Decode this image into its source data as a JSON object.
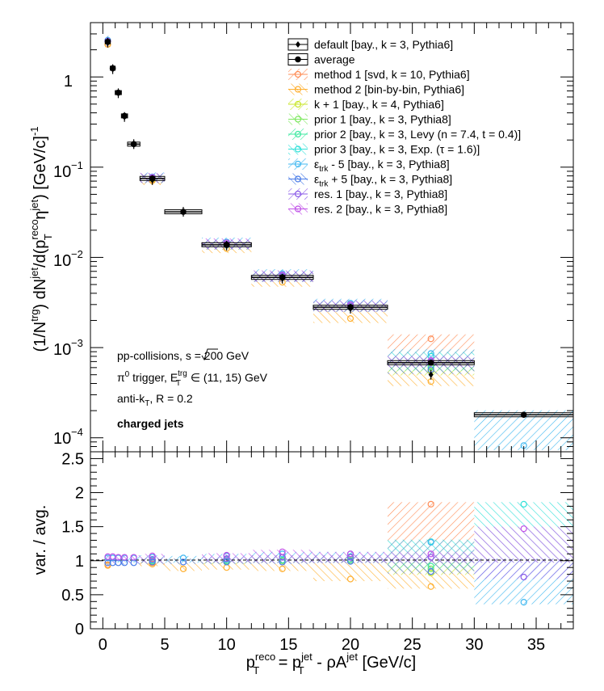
{
  "chart_data": [
    {
      "panel": "top",
      "type": "scatter",
      "ylabel": "(1/N^{trg}) dN^{jet}/d(p_{T}^{reco} η^{jet}) [GeV/c]^{-1}",
      "xlim": [
        -1,
        38
      ],
      "ylim": [
        7e-05,
        4
      ],
      "y_scale": "log",
      "x_ticks": [
        0,
        5,
        10,
        15,
        20,
        25,
        30,
        35
      ],
      "y_tick_labels": [
        "1",
        "10^{-1}",
        "10^{-2}",
        "10^{-3}",
        "10^{-4}"
      ],
      "legend_position": "top-right",
      "annotations": [
        "pp-collisions, √s = 200 GeV",
        "π^{0} trigger, E_{T}^{trg} ∈ (11, 15) GeV",
        "anti-k_{T}, R = 0.2",
        "charged jets"
      ],
      "bins": [
        [
          0.2,
          0.6
        ],
        [
          0.6,
          1
        ],
        [
          1,
          1.5
        ],
        [
          1.5,
          2
        ],
        [
          2,
          3
        ],
        [
          3,
          5
        ],
        [
          5,
          8
        ],
        [
          8,
          12
        ],
        [
          12,
          17
        ],
        [
          17,
          23
        ],
        [
          23,
          30
        ],
        [
          30,
          38
        ]
      ],
      "series": [
        {
          "name": "default [bay., k = 3, Pythia6]",
          "color": "#000000",
          "marker": "diamond",
          "x": [
            0.4,
            0.8,
            1.25,
            1.75,
            2.5,
            4,
            6.5,
            10,
            14.5,
            20,
            26.5
          ],
          "values": [
            2.4,
            1.22,
            0.66,
            0.36,
            0.18,
            0.072,
            0.032,
            0.0135,
            0.0058,
            0.0027,
            0.0005
          ]
        },
        {
          "name": "average",
          "color": "#000000",
          "marker": "circle",
          "x": [
            0.4,
            0.8,
            1.25,
            1.75,
            2.5,
            4,
            6.5,
            10,
            14.5,
            20,
            26.5,
            34
          ],
          "values": [
            2.45,
            1.25,
            0.67,
            0.37,
            0.18,
            0.075,
            0.032,
            0.0138,
            0.006,
            0.0028,
            0.00068,
            0.00018
          ]
        },
        {
          "name": "method 1 [svd, k = 10, Pythia6]",
          "color": "#ff8c55",
          "x": [
            0.4,
            4,
            10,
            14.5,
            20,
            26.5
          ],
          "values": [
            2.3,
            0.073,
            0.0138,
            0.0063,
            0.0029,
            0.00125
          ]
        },
        {
          "name": "method 2 [bin-by-bin, Pythia6]",
          "color": "#ffb030",
          "x": [
            0.4,
            4,
            10,
            14.5,
            20,
            26.5
          ],
          "values": [
            2.3,
            0.071,
            0.0125,
            0.0053,
            0.0021,
            0.00042
          ]
        },
        {
          "name": "k + 1 [bay., k = 4, Pythia6]",
          "color": "#c8e62a",
          "x": [
            4,
            10,
            14.5,
            20,
            26.5
          ],
          "values": [
            0.074,
            0.0136,
            0.006,
            0.0028,
            0.00055
          ]
        },
        {
          "name": "prior 1 [bay., k = 3, Pythia8]",
          "color": "#7ee860",
          "x": [
            4,
            10,
            14.5,
            20,
            26.5
          ],
          "values": [
            0.075,
            0.0137,
            0.006,
            0.0028,
            0.0006
          ]
        },
        {
          "name": "prior 2 [bay., k = 3, Levy (n = 7.4, t = 0.4)]",
          "color": "#3ee8a0",
          "x": [
            4,
            10,
            14.5,
            20,
            26.5
          ],
          "values": [
            0.075,
            0.0138,
            0.0061,
            0.0029,
            0.00062
          ]
        },
        {
          "name": "prior 3 [bay., k = 3, Exp. (τ = 1.6)]",
          "color": "#30e0d8",
          "x": [
            4,
            10,
            14.5,
            20,
            26.5
          ],
          "values": [
            0.076,
            0.014,
            0.0063,
            0.003,
            0.0008
          ]
        },
        {
          "name": "ε_{trk} - 5 [bay., k = 3, Pythia8]",
          "color": "#40b8f0",
          "x": [
            0.4,
            4,
            10,
            14.5,
            20,
            26.5,
            34
          ],
          "values": [
            2.55,
            0.078,
            0.0148,
            0.0066,
            0.0031,
            0.00086,
            8.2e-05
          ]
        },
        {
          "name": "ε_{trk} + 5 [bay., k = 3, Pythia8]",
          "color": "#4a7ce8",
          "x": [
            4,
            10,
            14.5,
            20,
            26.5
          ],
          "values": [
            0.075,
            0.0137,
            0.006,
            0.0028,
            0.00057
          ]
        },
        {
          "name": "res. 1 [bay., k = 3, Pythia8]",
          "color": "#8a5ae8",
          "x": [
            0.4,
            4,
            10,
            14.5,
            20,
            26.5
          ],
          "values": [
            2.5,
            0.076,
            0.014,
            0.0062,
            0.0029,
            0.0007
          ]
        },
        {
          "name": "res. 2 [bay., k = 3, Pythia8]",
          "color": "#c050e8",
          "x": [
            4,
            10,
            14.5,
            20,
            26.5
          ],
          "values": [
            0.077,
            0.0145,
            0.0064,
            0.003,
            0.00072
          ]
        }
      ]
    },
    {
      "panel": "bottom",
      "type": "scatter",
      "xlabel": "p_{T}^{reco} = p_{T}^{jet} - ρA^{jet} [GeV/c]",
      "ylabel": "var. / avg.",
      "xlim": [
        -1,
        38
      ],
      "ylim": [
        0,
        2.6
      ],
      "x_ticks": [
        0,
        5,
        10,
        15,
        20,
        25,
        30,
        35
      ],
      "y_ticks": [
        0,
        0.5,
        1,
        1.5,
        2,
        2.5
      ],
      "bins": [
        [
          0.2,
          0.6
        ],
        [
          0.6,
          1
        ],
        [
          1,
          1.5
        ],
        [
          1.5,
          2
        ],
        [
          2,
          3
        ],
        [
          3,
          5
        ],
        [
          5,
          8
        ],
        [
          8,
          12
        ],
        [
          12,
          17
        ],
        [
          17,
          23
        ],
        [
          23,
          30
        ],
        [
          30,
          38
        ]
      ],
      "series": [
        {
          "name": "method 1 [svd, k = 10, Pythia6]",
          "color": "#ff8c55",
          "x": [
            0.4,
            4,
            10,
            14.5,
            20,
            26.5
          ],
          "values": [
            0.94,
            0.97,
            1.0,
            1.05,
            1.05,
            1.83
          ]
        },
        {
          "name": "method 2 [bin-by-bin, Pythia6]",
          "color": "#ffb030",
          "x": [
            0.4,
            4,
            6.5,
            10,
            14.5,
            20,
            26.5
          ],
          "values": [
            0.93,
            0.95,
            0.88,
            0.9,
            0.88,
            0.73,
            0.62
          ]
        },
        {
          "name": "k + 1 [bay., k = 4, Pythia6]",
          "color": "#c8e62a",
          "x": [
            4,
            10,
            14.5,
            20,
            26.5
          ],
          "values": [
            0.99,
            0.98,
            1.0,
            1.0,
            0.82
          ]
        },
        {
          "name": "prior 1 [bay., k = 3, Pythia8]",
          "color": "#7ee860",
          "x": [
            4,
            10,
            14.5,
            20,
            26.5
          ],
          "values": [
            1.0,
            0.99,
            1.0,
            1.0,
            0.88
          ]
        },
        {
          "name": "prior 2 [bay., k = 3, Levy (n = 7.4, t = 0.4)]",
          "color": "#3ee8a0",
          "x": [
            4,
            10,
            14.5,
            20,
            26.5
          ],
          "values": [
            1.0,
            1.0,
            1.01,
            1.02,
            0.92
          ]
        },
        {
          "name": "prior 3 [bay., k = 3, Exp. (τ = 1.6)]",
          "color": "#30e0d8",
          "x": [
            4,
            10,
            14.5,
            20,
            26.5,
            34
          ],
          "values": [
            1.01,
            1.02,
            1.05,
            1.06,
            1.28,
            1.83
          ]
        },
        {
          "name": "ε_{trk} - 5 [bay., k = 3, Pythia8]",
          "color": "#40b8f0",
          "x": [
            0.4,
            0.8,
            1.25,
            1.75,
            2.5,
            4,
            6.5,
            10,
            14.5,
            20,
            26.5,
            34
          ],
          "values": [
            1.04,
            1.04,
            1.04,
            1.04,
            1.04,
            1.05,
            1.04,
            1.07,
            1.1,
            1.1,
            1.27,
            0.39
          ]
        },
        {
          "name": "ε_{trk} + 5 [bay., k = 3, Pythia8]",
          "color": "#4a7ce8",
          "x": [
            0.4,
            0.8,
            1.25,
            1.75,
            2.5,
            4,
            6.5,
            10,
            14.5,
            20,
            26.5
          ],
          "values": [
            0.97,
            0.97,
            0.97,
            0.97,
            0.97,
            0.98,
            0.98,
            0.98,
            0.98,
            0.99,
            0.84
          ]
        },
        {
          "name": "res. 1 [bay., k = 3, Pythia8]",
          "color": "#8a5ae8",
          "x": [
            4,
            10,
            14.5,
            20,
            26.5,
            34
          ],
          "values": [
            1.02,
            1.03,
            1.05,
            1.05,
            1.05,
            0.76
          ]
        },
        {
          "name": "res. 2 [bay., k = 3, Pythia8]",
          "color": "#c050e8",
          "x": [
            0.4,
            0.8,
            1.25,
            1.75,
            2.5,
            4,
            10,
            14.5,
            20,
            26.5,
            34
          ],
          "values": [
            1.06,
            1.06,
            1.05,
            1.05,
            1.05,
            1.07,
            1.08,
            1.13,
            1.1,
            1.1,
            1.47
          ]
        }
      ]
    }
  ],
  "legend": {
    "items": [
      {
        "label": "default [bay., k = 3, Pythia6]",
        "kind": "default"
      },
      {
        "label": "average",
        "kind": "average"
      },
      {
        "label": "method 1 [svd, k = 10, Pythia6]",
        "kind": "var",
        "color": "#ff8c55"
      },
      {
        "label": "method 2 [bin-by-bin, Pythia6]",
        "kind": "var",
        "color": "#ffb030"
      },
      {
        "label": "k + 1 [bay., k = 4, Pythia6]",
        "kind": "var",
        "color": "#c8e62a"
      },
      {
        "label": "prior 1 [bay., k = 3, Pythia8]",
        "kind": "var",
        "color": "#7ee860"
      },
      {
        "label": "prior 2 [bay., k = 3, Levy (n = 7.4, t = 0.4)]",
        "kind": "var",
        "color": "#3ee8a0"
      },
      {
        "label": "prior 3 [bay., k = 3, Exp. (τ = 1.6)]",
        "kind": "var",
        "color": "#30e0d8"
      },
      {
        "label": "- 5 [bay., k = 3, Pythia8]",
        "prefix": "ε",
        "sub": "trk",
        "kind": "var",
        "color": "#40b8f0"
      },
      {
        "label": "+ 5 [bay., k = 3, Pythia8]",
        "prefix": "ε",
        "sub": "trk",
        "kind": "var",
        "color": "#4a7ce8"
      },
      {
        "label": "res. 1 [bay., k = 3, Pythia8]",
        "kind": "var",
        "color": "#8a5ae8"
      },
      {
        "label": "res. 2 [bay., k = 3, Pythia8]",
        "kind": "var",
        "color": "#c050e8"
      }
    ]
  },
  "annotations": {
    "collisions_prefix": "pp-collisions, ",
    "sqrt_s": "s",
    "energy": " = 200 GeV",
    "trigger_pi": "π",
    "trigger_sup0": "0",
    "trigger_mid": " trigger, E",
    "trigger_sup": "trg",
    "trigger_sub": "T",
    "trigger_range": " ∈ (11, 15) GeV",
    "algo": "anti-k",
    "algo_sub": "T",
    "algo_r": ", R = 0.2",
    "jets": "charged jets"
  },
  "axes": {
    "top_y_a": "(1/N",
    "top_y_b": "trg",
    "top_y_c": ") dN",
    "top_y_d": "jet",
    "top_y_e": "/d(p",
    "top_y_f": "reco",
    "top_y_g": "T",
    "top_y_h": " η",
    "top_y_i": "jet",
    "top_y_j": ") [GeV/c]",
    "top_y_k": "-1",
    "bottom_y": "var. / avg.",
    "x_a": "p",
    "x_b": "reco",
    "x_c": "T",
    "x_d": " = p",
    "x_e": "jet",
    "x_f": "T",
    "x_g": " - ρA",
    "x_h": "jet",
    "x_i": " [GeV/c]",
    "top_y_tick_1": "1",
    "ten": "10",
    "exp_m1": "−1",
    "exp_m2": "−2",
    "exp_m3": "−3",
    "exp_m4": "−4",
    "bottom_y_ticks": [
      "0",
      "0.5",
      "1",
      "1.5",
      "2",
      "2.5"
    ],
    "x_ticks": [
      "0",
      "5",
      "10",
      "15",
      "20",
      "25",
      "30",
      "35"
    ]
  }
}
